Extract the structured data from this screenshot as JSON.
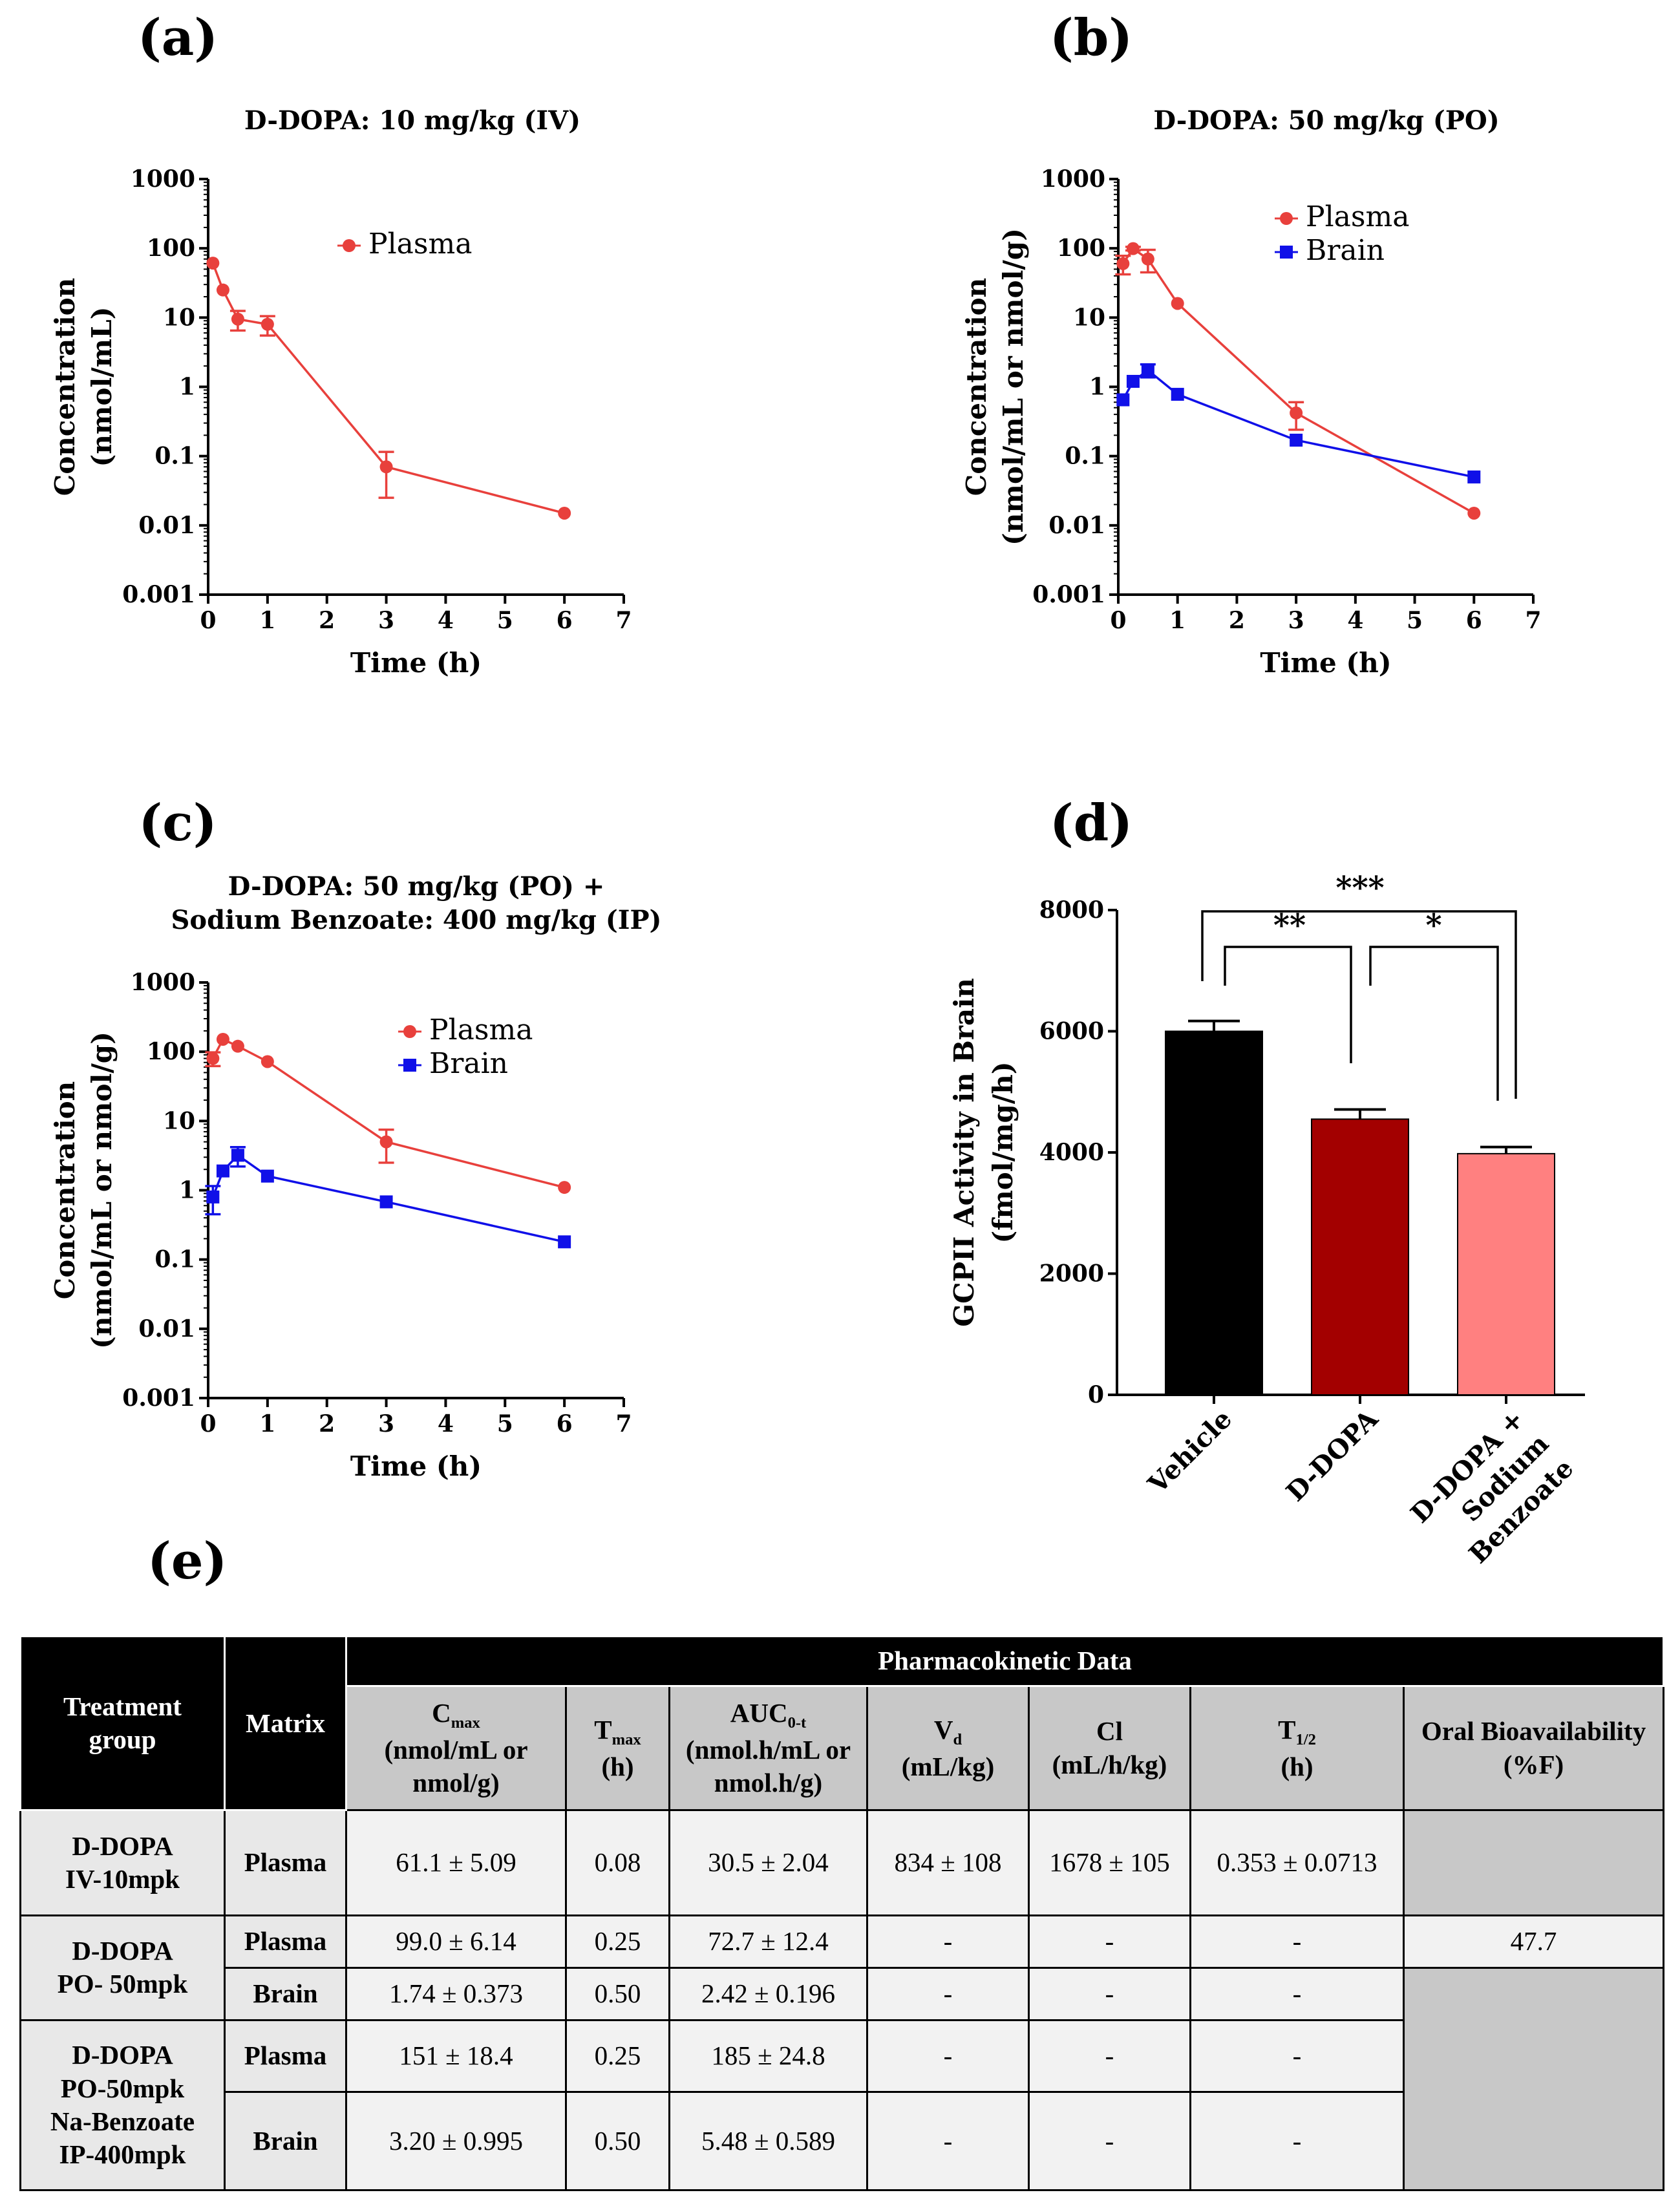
{
  "colors": {
    "plasma": "#e8403c",
    "brain": "#1010e8",
    "vehicle": "#000000",
    "ddopa": "#a30000",
    "ddopa_nb": "#ff8080"
  },
  "panels": {
    "a": {
      "label": "(a)",
      "title": "D-DOPA: 10 mg/kg (IV)",
      "ylabel": [
        "Concentration",
        "(nmol/mL)"
      ],
      "xlabel": "Time (h)",
      "legend": [
        "Plasma"
      ]
    },
    "b": {
      "label": "(b)",
      "title": "D-DOPA: 50 mg/kg (PO)",
      "ylabel": [
        "Concentration",
        "(nmol/mL or nmol/g)"
      ],
      "xlabel": "Time (h)",
      "legend": [
        "Plasma",
        "Brain"
      ]
    },
    "c": {
      "label": "(c)",
      "title": [
        "D-DOPA: 50 mg/kg (PO) +",
        "Sodium Benzoate: 400 mg/kg (IP)"
      ],
      "ylabel": [
        "Concentration",
        "(nmol/mL or nmol/g)"
      ],
      "xlabel": "Time (h)",
      "legend": [
        "Plasma",
        "Brain"
      ]
    },
    "d": {
      "label": "(d)",
      "ylabel": [
        "GCPII Activity in Brain",
        "(fmol/mg/h)"
      ],
      "sig": [
        "***",
        "**",
        "*"
      ]
    },
    "e": {
      "label": "(e)"
    }
  },
  "chart_data": [
    {
      "type": "line",
      "id": "a",
      "title": "D-DOPA: 10 mg/kg (IV)",
      "xlabel": "Time (h)",
      "ylabel": "Concentration (nmol/mL)",
      "xlim": [
        0,
        7
      ],
      "xticks": [
        "0",
        "1",
        "2",
        "3",
        "4",
        "5",
        "6",
        "7"
      ],
      "yscale": "log",
      "ylim": [
        0.001,
        1000
      ],
      "yticks": [
        "0.001",
        "0.01",
        "0.1",
        "1",
        "10",
        "100",
        "1000"
      ],
      "series": [
        {
          "name": "Plasma",
          "x": [
            0.08,
            0.25,
            0.5,
            1,
            3,
            6
          ],
          "y": [
            61.1,
            25,
            9.5,
            8,
            0.07,
            0.015
          ],
          "err": [
            0,
            0,
            3,
            2.5,
            0.045,
            0
          ]
        }
      ]
    },
    {
      "type": "line",
      "id": "b",
      "title": "D-DOPA: 50 mg/kg (PO)",
      "xlabel": "Time (h)",
      "ylabel": "Concentration (nmol/mL or nmol/g)",
      "xlim": [
        0,
        7
      ],
      "xticks": [
        "0",
        "1",
        "2",
        "3",
        "4",
        "5",
        "6",
        "7"
      ],
      "yscale": "log",
      "ylim": [
        0.001,
        1000
      ],
      "yticks": [
        "0.001",
        "0.01",
        "0.1",
        "1",
        "10",
        "100",
        "1000"
      ],
      "series": [
        {
          "name": "Plasma",
          "x": [
            0.08,
            0.25,
            0.5,
            1,
            3,
            6
          ],
          "y": [
            60,
            99,
            70,
            16,
            0.42,
            0.015
          ],
          "err": [
            18,
            6,
            25,
            0,
            0.18,
            0
          ]
        },
        {
          "name": "Brain",
          "x": [
            0.08,
            0.25,
            0.5,
            1,
            3,
            6
          ],
          "y": [
            0.65,
            1.2,
            1.74,
            0.78,
            0.17,
            0.05
          ],
          "err": [
            0,
            0,
            0.37,
            0,
            0,
            0
          ]
        }
      ]
    },
    {
      "type": "line",
      "id": "c",
      "title": "D-DOPA: 50 mg/kg (PO) + Sodium Benzoate: 400 mg/kg (IP)",
      "xlabel": "Time (h)",
      "ylabel": "Concentration (nmol/mL or nmol/g)",
      "xlim": [
        0,
        7
      ],
      "xticks": [
        "0",
        "1",
        "2",
        "3",
        "4",
        "5",
        "6",
        "7"
      ],
      "yscale": "log",
      "ylim": [
        0.001,
        1000
      ],
      "yticks": [
        "0.001",
        "0.01",
        "0.1",
        "1",
        "10",
        "100",
        "1000"
      ],
      "series": [
        {
          "name": "Plasma",
          "x": [
            0.08,
            0.25,
            0.5,
            1,
            3,
            6
          ],
          "y": [
            80,
            151,
            120,
            72,
            5,
            1.1
          ],
          "err": [
            18,
            0,
            0,
            0,
            2.5,
            0
          ]
        },
        {
          "name": "Brain",
          "x": [
            0.08,
            0.25,
            0.5,
            1,
            3,
            6
          ],
          "y": [
            0.8,
            1.9,
            3.2,
            1.6,
            0.68,
            0.18
          ],
          "err": [
            0.35,
            0,
            1.0,
            0,
            0,
            0
          ]
        }
      ]
    },
    {
      "type": "bar",
      "id": "d",
      "ylabel": "GCPII Activity in Brain (fmol/mg/h)",
      "categories": [
        "Vehicle",
        "D-DOPA",
        "D-DOPA + Sodium Benzoate"
      ],
      "category_lines": [
        [
          "Vehicle"
        ],
        [
          "D-DOPA"
        ],
        [
          "D-DOPA +",
          "Sodium",
          "Benzoate"
        ]
      ],
      "values": [
        6000,
        4550,
        3980
      ],
      "err": [
        170,
        160,
        110
      ],
      "ylim": [
        0,
        8000
      ],
      "yticks": [
        "0",
        "2000",
        "4000",
        "6000",
        "8000"
      ],
      "significance": [
        {
          "from": 0,
          "to": 2,
          "label": "***"
        },
        {
          "from": 0,
          "to": 1,
          "label": "**"
        },
        {
          "from": 1,
          "to": 2,
          "label": "*"
        }
      ]
    }
  ],
  "table": {
    "headers": {
      "group": "Treatment group",
      "matrix": "Matrix",
      "pk": "Pharmacokinetic Data",
      "cmax_main": "C",
      "cmax_sub": "max",
      "cmax_unit": "(nmol/mL or nmol/g)",
      "tmax_main": "T",
      "tmax_sub": "max",
      "tmax_unit": "(h)",
      "auc_main": "AUC",
      "auc_sub": "0-t",
      "auc_unit": "(nmol.h/mL or nmol.h/g)",
      "vd_main": "V",
      "vd_sub": "d",
      "vd_unit": "(mL/kg)",
      "cl_main": "Cl",
      "cl_unit": "(mL/h/kg)",
      "thalf_main": "T",
      "thalf_sub": "1/2",
      "thalf_unit": "(h)",
      "oral": "Oral Bioavailability (%F)"
    },
    "groups": [
      {
        "name": [
          "D-DOPA",
          "IV-10mpk"
        ],
        "rows": [
          {
            "matrix": "Plasma",
            "cmax": "61.1 ± 5.09",
            "tmax": "0.08",
            "auc": "30.5 ± 2.04",
            "vd": "834 ± 108",
            "cl": "1678 ± 105",
            "thalf": "0.353 ± 0.0713"
          }
        ]
      },
      {
        "name": [
          "D-DOPA",
          "PO- 50mpk"
        ],
        "rows": [
          {
            "matrix": "Plasma",
            "cmax": "99.0 ± 6.14",
            "tmax": "0.25",
            "auc": "72.7 ± 12.4",
            "vd": "-",
            "cl": "-",
            "thalf": "-",
            "oral": "47.7"
          },
          {
            "matrix": "Brain",
            "cmax": "1.74 ± 0.373",
            "tmax": "0.50",
            "auc": "2.42 ± 0.196",
            "vd": "-",
            "cl": "-",
            "thalf": "-"
          }
        ]
      },
      {
        "name": [
          "D-DOPA",
          "PO-50mpk",
          "Na-Benzoate",
          "IP-400mpk"
        ],
        "rows": [
          {
            "matrix": "Plasma",
            "cmax": "151 ± 18.4",
            "tmax": "0.25",
            "auc": "185 ± 24.8",
            "vd": "-",
            "cl": "-",
            "thalf": "-"
          },
          {
            "matrix": "Brain",
            "cmax": "3.20 ± 0.995",
            "tmax": "0.50",
            "auc": "5.48 ± 0.589",
            "vd": "-",
            "cl": "-",
            "thalf": "-"
          }
        ]
      }
    ]
  }
}
